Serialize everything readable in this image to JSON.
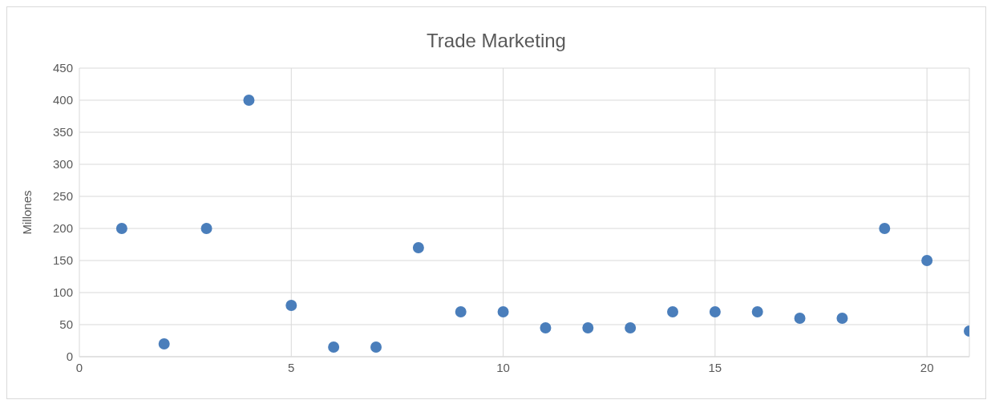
{
  "chart_data": {
    "type": "scatter",
    "title": "Trade Marketing",
    "ylabel": "Millones",
    "x": [
      1,
      2,
      3,
      4,
      5,
      6,
      7,
      8,
      9,
      10,
      11,
      12,
      13,
      14,
      15,
      16,
      17,
      18,
      19,
      20,
      21
    ],
    "series": [
      {
        "color": "#4a7ebb",
        "values": [
          200,
          20,
          200,
          400,
          80,
          15,
          15,
          170,
          70,
          70,
          45,
          45,
          45,
          70,
          70,
          70,
          60,
          60,
          200,
          150,
          40
        ]
      }
    ],
    "xlim": [
      0,
      21
    ],
    "xticks": [
      0,
      5,
      10,
      15,
      20
    ],
    "ylim": [
      0,
      450
    ],
    "yticks": [
      0,
      50,
      100,
      150,
      200,
      250,
      300,
      350,
      400,
      450
    ],
    "grid": true,
    "marker": "circle"
  }
}
